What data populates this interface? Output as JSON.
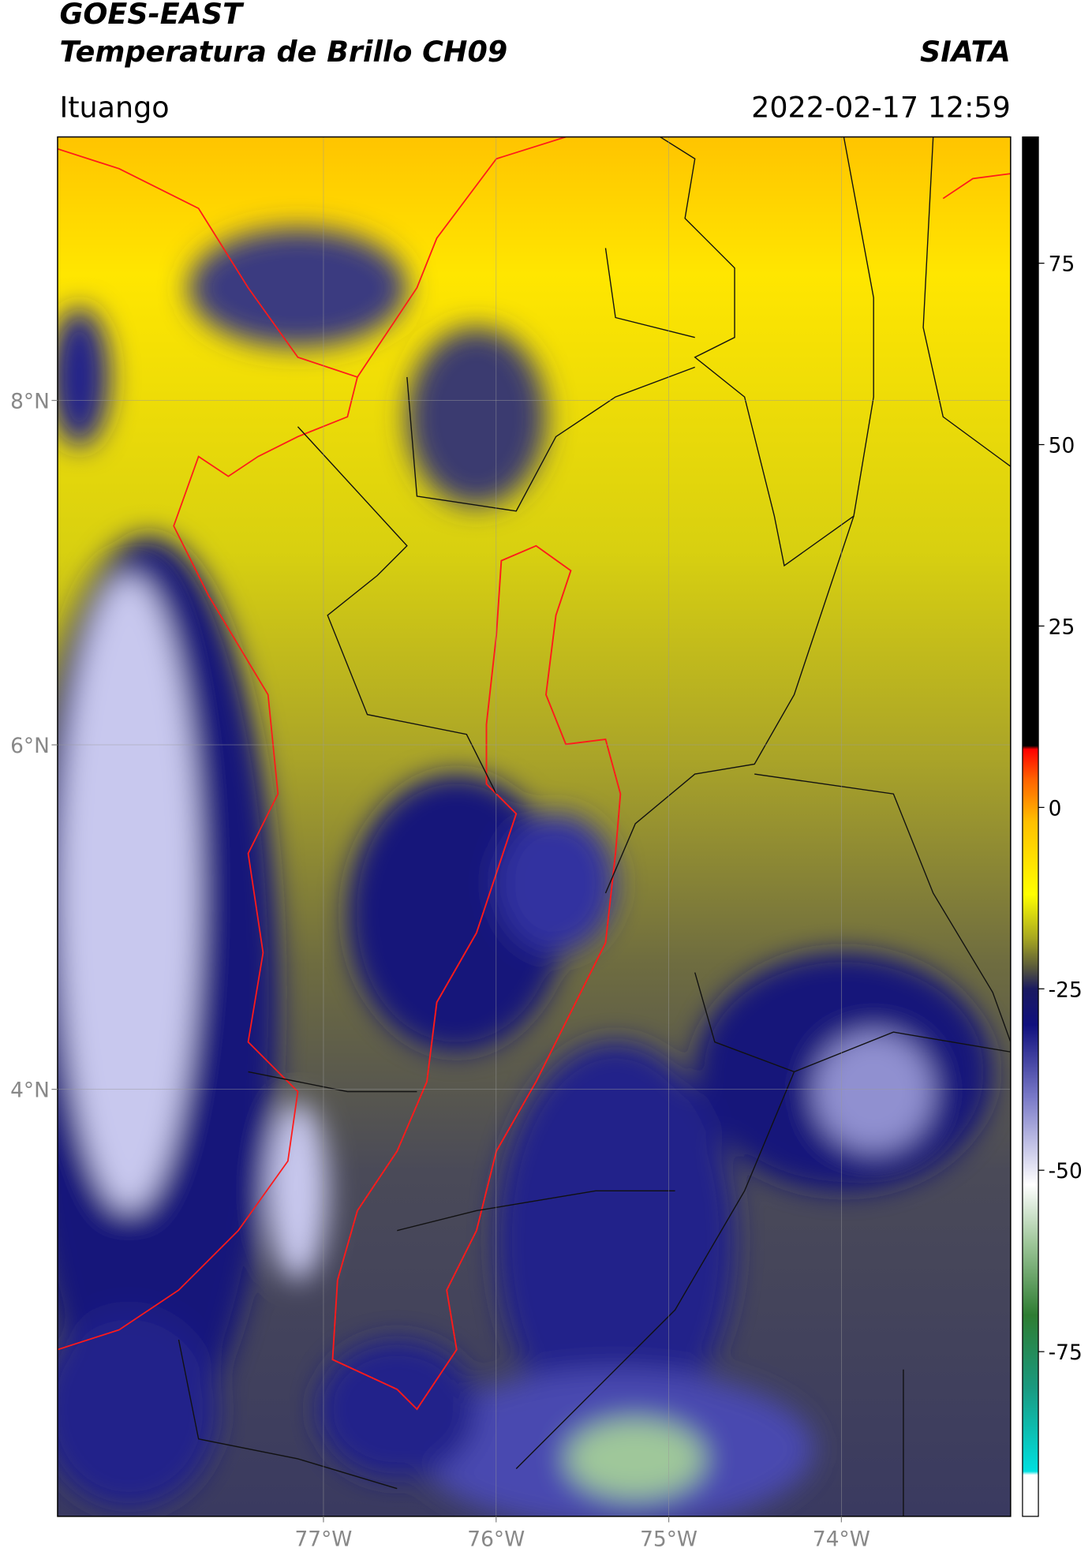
{
  "header": {
    "title": "GOES-EAST",
    "subtitle": "Temperatura de Brillo CH09",
    "brand": "SIATA",
    "location": "Ituango",
    "datetime": "2022-02-17 12:59"
  },
  "map": {
    "xlim": [
      -78.54,
      -73.02
    ],
    "ylim": [
      1.52,
      9.53
    ],
    "xticks": [
      {
        "value": -77,
        "label": "77°W"
      },
      {
        "value": -76,
        "label": "76°W"
      },
      {
        "value": -75,
        "label": "75°W"
      },
      {
        "value": -74,
        "label": "74°W"
      }
    ],
    "yticks": [
      {
        "value": 8,
        "label": "8°N"
      },
      {
        "value": 6,
        "label": "6°N"
      },
      {
        "value": 4,
        "label": "4°N"
      }
    ],
    "grid": true
  },
  "colorbar": {
    "clim": [
      -97.7,
      92.4
    ],
    "ticks": [
      75,
      50,
      25,
      0,
      -25,
      -50,
      -75
    ],
    "colormap": [
      {
        "value": -97.7,
        "color": "#ffffff"
      },
      {
        "value": -92,
        "color": "#ffffff"
      },
      {
        "value": -91.5,
        "color": "#00e0e0"
      },
      {
        "value": -80,
        "color": "#1a9a80"
      },
      {
        "value": -70,
        "color": "#2e7d32"
      },
      {
        "value": -60,
        "color": "#9fc79a"
      },
      {
        "value": -52,
        "color": "#ffffff"
      },
      {
        "value": -40,
        "color": "#7a7ac8"
      },
      {
        "value": -30,
        "color": "#10107e"
      },
      {
        "value": -25,
        "color": "#1a1a60"
      },
      {
        "value": -22,
        "color": "#5a5a3a"
      },
      {
        "value": -18,
        "color": "#a8a820"
      },
      {
        "value": -12,
        "color": "#ffff00"
      },
      {
        "value": -2,
        "color": "#ffc000"
      },
      {
        "value": 4,
        "color": "#ff6000"
      },
      {
        "value": 8,
        "color": "#ff0000"
      },
      {
        "value": 8.5,
        "color": "#000000"
      },
      {
        "value": 92.4,
        "color": "#000000"
      }
    ]
  }
}
